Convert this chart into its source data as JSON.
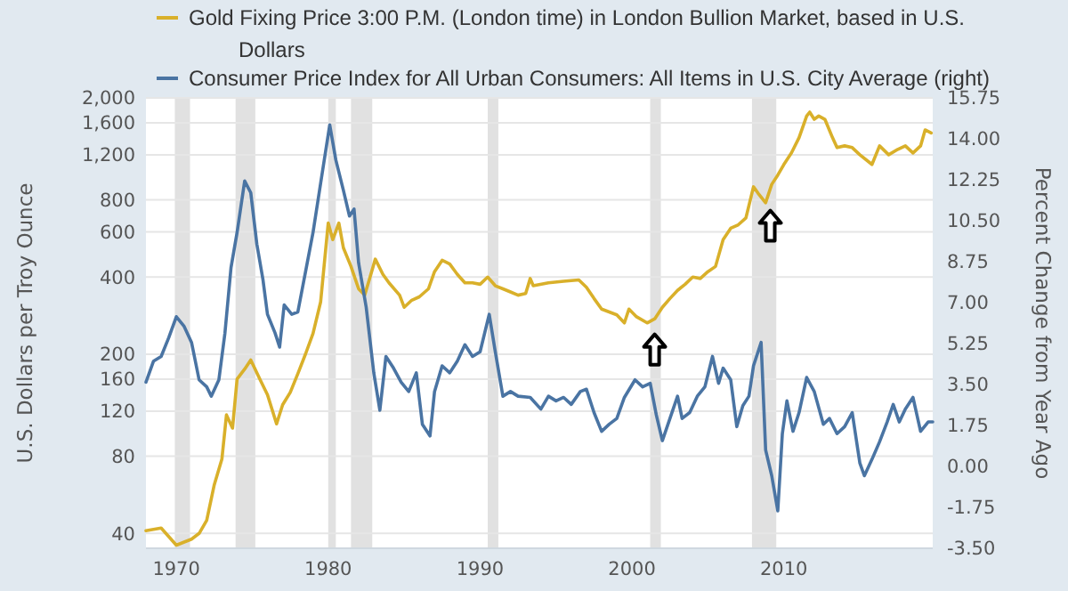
{
  "chart_data": {
    "type": "line",
    "ylabel": "U.S. Dollars per Troy Ounce",
    "y2label": "Percent Change from Year Ago",
    "log": "y",
    "xlim": [
      1968,
      2019.8
    ],
    "xticks": [
      1970,
      1980,
      1990,
      2000,
      2010
    ],
    "ylim": [
      35,
      2000
    ],
    "yticks": [
      40,
      80,
      120,
      160,
      200,
      400,
      600,
      800,
      {
        "value": 1200,
        "label": "1,200"
      },
      {
        "value": 1600,
        "label": "1,600"
      },
      {
        "value": 2000,
        "label": "2,000"
      }
    ],
    "y2lim": [
      -3.5,
      15.75
    ],
    "y2ticks": [
      {
        "value": -3.5,
        "label": "-3.50"
      },
      {
        "value": -1.75,
        "label": "-1.75"
      },
      {
        "value": 0,
        "label": "0.00"
      },
      {
        "value": 1.75,
        "label": "1.75"
      },
      {
        "value": 3.5,
        "label": "3.50"
      },
      {
        "value": 5.25,
        "label": "5.25"
      },
      {
        "value": 7,
        "label": "7.00"
      },
      {
        "value": 8.75,
        "label": "8.75"
      },
      {
        "value": 10.5,
        "label": "10.50"
      },
      {
        "value": 12.25,
        "label": "12.25"
      },
      {
        "value": 14,
        "label": "14.00"
      },
      {
        "value": 15.75,
        "label": "15.75"
      }
    ],
    "grid": "y",
    "legend": "top",
    "bands": [
      {
        "axis": "x",
        "from": 1969.9,
        "to": 1970.9,
        "color": "#e1e1e1"
      },
      {
        "axis": "x",
        "from": 1973.9,
        "to": 1975.2,
        "color": "#e1e1e1"
      },
      {
        "axis": "x",
        "from": 1980.0,
        "to": 1980.5,
        "color": "#e1e1e1"
      },
      {
        "axis": "x",
        "from": 1981.5,
        "to": 1982.9,
        "color": "#e1e1e1"
      },
      {
        "axis": "x",
        "from": 1990.5,
        "to": 1991.2,
        "color": "#e1e1e1"
      },
      {
        "axis": "x",
        "from": 2001.2,
        "to": 2001.9,
        "color": "#e1e1e1"
      },
      {
        "axis": "x",
        "from": 2007.9,
        "to": 2009.5,
        "color": "#e1e1e1"
      }
    ],
    "series": [
      {
        "name": "Gold Fixing Price 3:00 P.M. (London time) in London Bullion Market, based in U.S. Dollars",
        "color": "#d9b02a",
        "x": [
          1968.0,
          1969.0,
          1970.0,
          1971.0,
          1971.5,
          1972.0,
          1972.5,
          1973.0,
          1973.3,
          1973.7,
          1974.0,
          1974.5,
          1974.9,
          1975.5,
          1976.0,
          1976.6,
          1977.0,
          1977.5,
          1978.0,
          1978.5,
          1979.0,
          1979.5,
          1980.0,
          1980.3,
          1980.7,
          1981.0,
          1981.5,
          1982.0,
          1982.4,
          1982.7,
          1983.1,
          1983.6,
          1984.0,
          1984.7,
          1985.0,
          1985.5,
          1986.0,
          1986.6,
          1987.0,
          1987.5,
          1988.0,
          1988.5,
          1989.0,
          1989.5,
          1990.0,
          1990.5,
          1991.0,
          1991.5,
          1992.0,
          1992.5,
          1993.0,
          1993.3,
          1993.5,
          1994.5,
          1995.5,
          1996.5,
          1997.0,
          1997.5,
          1998.0,
          1999.0,
          1999.5,
          1999.8,
          2000.3,
          2001.0,
          2001.5,
          2002.0,
          2002.5,
          2003.0,
          2003.5,
          2004.0,
          2004.5,
          2005.0,
          2005.5,
          2006.0,
          2006.5,
          2007.0,
          2007.5,
          2008.0,
          2008.3,
          2008.8,
          2009.2,
          2009.6,
          2010.0,
          2010.5,
          2011.0,
          2011.5,
          2011.7,
          2012.0,
          2012.3,
          2012.7,
          2013.2,
          2013.5,
          2014.0,
          2014.5,
          2015.0,
          2015.8,
          2016.3,
          2016.9,
          2017.5,
          2018.0,
          2018.5,
          2019.0,
          2019.3,
          2019.7
        ],
        "values": [
          41,
          42,
          36,
          38,
          40,
          45,
          62,
          78,
          116,
          103,
          160,
          175,
          190,
          160,
          139,
          107,
          127,
          142,
          168,
          200,
          241,
          320,
          650,
          560,
          650,
          520,
          440,
          360,
          340,
          390,
          470,
          410,
          380,
          340,
          305,
          325,
          335,
          360,
          420,
          465,
          450,
          410,
          380,
          380,
          375,
          400,
          370,
          360,
          350,
          340,
          345,
          395,
          370,
          380,
          385,
          390,
          365,
          330,
          300,
          285,
          265,
          300,
          280,
          265,
          275,
          305,
          330,
          355,
          375,
          400,
          395,
          420,
          440,
          560,
          620,
          640,
          680,
          900,
          850,
          780,
          920,
          1000,
          1100,
          1220,
          1400,
          1700,
          1760,
          1650,
          1700,
          1650,
          1400,
          1280,
          1300,
          1280,
          1200,
          1100,
          1300,
          1200,
          1260,
          1300,
          1220,
          1300,
          1500,
          1460
        ]
      },
      {
        "name": "Consumer Price Index for All Urban Consumers: All Items in U.S. City Average (right)",
        "color": "#4a74a3",
        "axis": "y2",
        "x": [
          1968.0,
          1968.5,
          1969.0,
          1969.5,
          1970.0,
          1970.5,
          1971.0,
          1971.5,
          1972.0,
          1972.3,
          1972.8,
          1973.2,
          1973.6,
          1974.0,
          1974.5,
          1974.9,
          1975.3,
          1975.7,
          1976.0,
          1976.5,
          1976.8,
          1977.1,
          1977.6,
          1978.0,
          1978.5,
          1979.0,
          1979.5,
          1980.1,
          1980.5,
          1981.0,
          1981.4,
          1981.7,
          1982.0,
          1982.5,
          1983.0,
          1983.4,
          1983.8,
          1984.3,
          1984.8,
          1985.3,
          1985.8,
          1986.2,
          1986.7,
          1987.0,
          1987.5,
          1988.0,
          1988.5,
          1989.0,
          1989.5,
          1990.0,
          1990.6,
          1991.0,
          1991.5,
          1992.0,
          1992.5,
          1993.3,
          1994.0,
          1994.5,
          1995.0,
          1995.5,
          1996.0,
          1996.6,
          1997.0,
          1997.5,
          1998.0,
          1998.5,
          1999.0,
          1999.5,
          2000.2,
          2000.7,
          2001.2,
          2001.6,
          2002.0,
          2002.5,
          2003.0,
          2003.3,
          2003.8,
          2004.3,
          2004.8,
          2005.3,
          2005.7,
          2006.0,
          2006.5,
          2006.9,
          2007.3,
          2007.7,
          2008.0,
          2008.5,
          2008.8,
          2009.2,
          2009.6,
          2009.9,
          2010.2,
          2010.6,
          2011.0,
          2011.5,
          2012.0,
          2012.6,
          2013.0,
          2013.5,
          2014.0,
          2014.5,
          2015.0,
          2015.3,
          2015.8,
          2016.3,
          2016.8,
          2017.2,
          2017.6,
          2018.0,
          2018.5,
          2019.0,
          2019.5,
          2019.8
        ],
        "values": [
          3.6,
          4.5,
          4.7,
          5.5,
          6.4,
          6.0,
          5.3,
          3.7,
          3.4,
          3.0,
          3.7,
          5.7,
          8.5,
          10.0,
          12.2,
          11.7,
          9.5,
          8.0,
          6.5,
          5.7,
          5.1,
          6.9,
          6.5,
          6.6,
          8.3,
          10.0,
          12.1,
          14.6,
          13.1,
          11.8,
          10.7,
          11.0,
          8.7,
          6.8,
          4.0,
          2.4,
          4.7,
          4.2,
          3.6,
          3.2,
          4.0,
          1.8,
          1.3,
          3.2,
          4.3,
          4.0,
          4.5,
          5.2,
          4.7,
          4.9,
          6.5,
          4.9,
          3.0,
          3.2,
          3.0,
          2.95,
          2.45,
          3.0,
          2.8,
          2.95,
          2.65,
          3.2,
          3.3,
          2.3,
          1.5,
          1.8,
          2.05,
          2.95,
          3.7,
          3.4,
          3.55,
          2.2,
          1.1,
          2.05,
          3.0,
          2.05,
          2.3,
          3.0,
          3.4,
          4.7,
          3.55,
          4.2,
          3.7,
          1.7,
          2.6,
          3.0,
          4.3,
          5.3,
          0.7,
          -0.4,
          -1.9,
          1.4,
          2.8,
          1.5,
          2.3,
          3.8,
          3.2,
          1.8,
          2.05,
          1.4,
          1.7,
          2.3,
          0.15,
          -0.4,
          0.3,
          1.05,
          1.9,
          2.65,
          1.9,
          2.45,
          2.95,
          1.5,
          1.9,
          1.9
        ]
      }
    ]
  }
}
